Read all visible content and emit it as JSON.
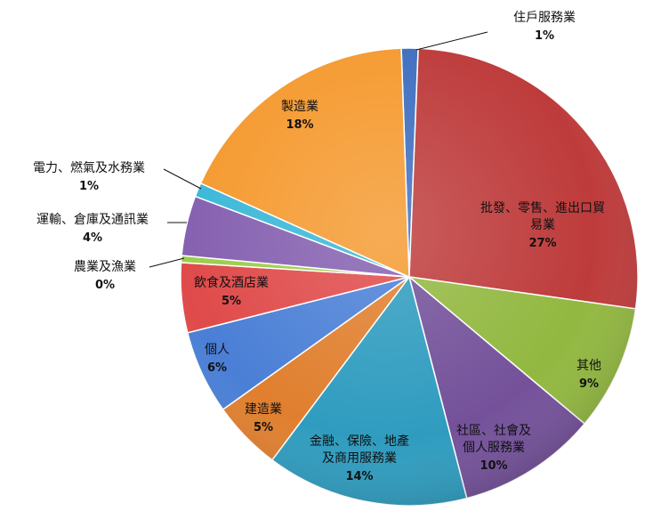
{
  "chart_data": {
    "type": "pie",
    "start_angle_deg": -2,
    "slices": [
      {
        "name": "住戶服務業",
        "name_lines": [
          "住戶服務業"
        ],
        "label": "1%",
        "value": 1.2,
        "color": "#3f6fc0"
      },
      {
        "name": "批發、零售、進出口貿易業",
        "name_lines": [
          "批發、零售、進出口貿",
          "易業"
        ],
        "label": "27%",
        "value": 27,
        "color": "#be3b3b"
      },
      {
        "name": "其他",
        "name_lines": [
          "其他"
        ],
        "label": "9%",
        "value": 9,
        "color": "#92b840"
      },
      {
        "name": "社區、社會及個人服務業",
        "name_lines": [
          "社區、社會及",
          "個人服務業"
        ],
        "label": "10%",
        "value": 10,
        "color": "#74519a"
      },
      {
        "name": "金融、保險、地產及商用服務業",
        "name_lines": [
          "金融、保險、地產",
          "及商用服務業"
        ],
        "label": "14%",
        "value": 14.5,
        "color": "#2f9cbf"
      },
      {
        "name": "建造業",
        "name_lines": [
          "建造業"
        ],
        "label": "5%",
        "value": 5,
        "color": "#e07f2e"
      },
      {
        "name": "個人",
        "name_lines": [
          "個人"
        ],
        "label": "6%",
        "value": 6,
        "color": "#4a7fd6"
      },
      {
        "name": "飲食及酒店業",
        "name_lines": [
          "飲食及酒店業"
        ],
        "label": "5%",
        "value": 5,
        "color": "#e04a4a"
      },
      {
        "name": "農業及漁業",
        "name_lines": [
          "農業及漁業"
        ],
        "label": "0%",
        "value": 0.5,
        "color": "#9ccc4c"
      },
      {
        "name": "運輸、倉庫及通訊業",
        "name_lines": [
          "運輸、倉庫及通訊業"
        ],
        "label": "4%",
        "value": 4.3,
        "color": "#8560b0"
      },
      {
        "name": "電力、燃氣及水務業",
        "name_lines": [
          "電力、燃氣及水務業"
        ],
        "label": "1%",
        "value": 1,
        "color": "#3cb8d8"
      },
      {
        "name": "製造業",
        "name_lines": [
          "製造業"
        ],
        "label": "18%",
        "value": 18,
        "color": "#f59a30"
      }
    ]
  }
}
